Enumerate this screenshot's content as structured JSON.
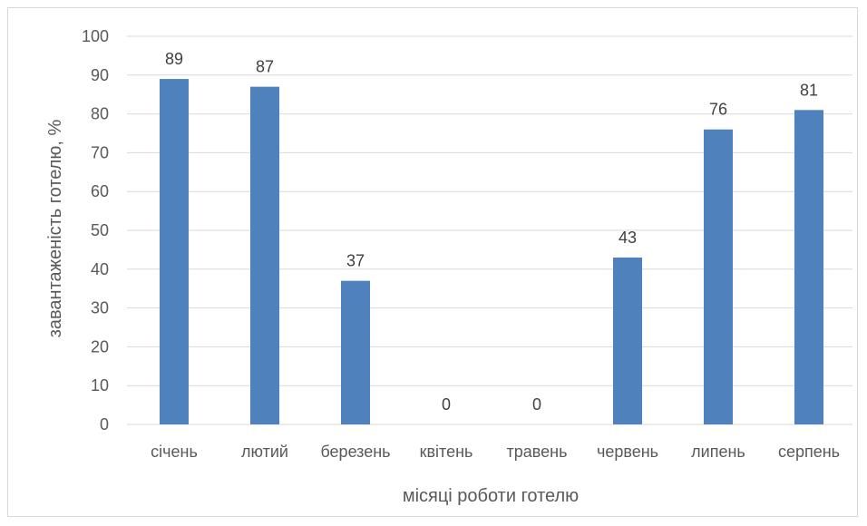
{
  "chart_data": {
    "type": "bar",
    "categories": [
      "січень",
      "лютий",
      "березень",
      "квітень",
      "травень",
      "червень",
      "липень",
      "серпень"
    ],
    "values": [
      89,
      87,
      37,
      0,
      0,
      43,
      76,
      81
    ],
    "data_labels": [
      "89",
      "87",
      "37",
      "0",
      "0",
      "43",
      "76",
      "81"
    ],
    "title": "",
    "xlabel": "місяці роботи готелю",
    "ylabel": "завантаженість готелю, %",
    "ylim": [
      0,
      100
    ],
    "y_ticks": [
      "0",
      "10",
      "20",
      "30",
      "40",
      "50",
      "60",
      "70",
      "80",
      "90",
      "100"
    ],
    "grid": true,
    "legend": "none"
  },
  "colors": {
    "bar": "#4f81bd",
    "grid": "#d9d9d9",
    "axis_text": "#595959",
    "label_text": "#404040"
  }
}
